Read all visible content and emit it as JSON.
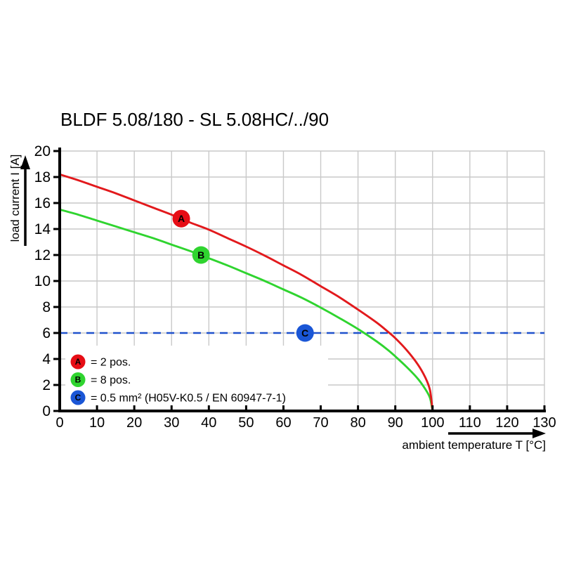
{
  "chart_data": {
    "type": "line",
    "title": "BLDF 5.08/180 - SL 5.08HC/../90",
    "xlabel": "ambient temperature T [°C]",
    "ylabel": "load current I [A]",
    "xlim": [
      0,
      130
    ],
    "ylim": [
      0,
      20
    ],
    "xticks": [
      0,
      10,
      20,
      30,
      40,
      50,
      60,
      70,
      80,
      90,
      100,
      110,
      120,
      130
    ],
    "yticks": [
      0,
      2,
      4,
      6,
      8,
      10,
      12,
      14,
      16,
      18,
      20
    ],
    "grid": true,
    "legend_position": "bottom-left-inside",
    "series": [
      {
        "id": "A",
        "name": "2 pos.",
        "style": "solid",
        "color": "#e2191c",
        "points": [
          [
            0,
            18.2
          ],
          [
            5,
            17.75
          ],
          [
            10,
            17.25
          ],
          [
            15,
            16.75
          ],
          [
            20,
            16.2
          ],
          [
            25,
            15.65
          ],
          [
            30,
            15.1
          ],
          [
            35,
            14.5
          ],
          [
            40,
            13.95
          ],
          [
            45,
            13.3
          ],
          [
            50,
            12.65
          ],
          [
            55,
            11.95
          ],
          [
            60,
            11.2
          ],
          [
            65,
            10.45
          ],
          [
            70,
            9.6
          ],
          [
            75,
            8.75
          ],
          [
            80,
            7.8
          ],
          [
            85,
            6.8
          ],
          [
            88,
            6.1
          ],
          [
            90,
            5.6
          ],
          [
            93,
            4.7
          ],
          [
            96,
            3.6
          ],
          [
            98,
            2.6
          ],
          [
            99.3,
            1.6
          ],
          [
            100,
            0
          ]
        ]
      },
      {
        "id": "B",
        "name": "8 pos.",
        "style": "solid",
        "color": "#2fd42f",
        "points": [
          [
            0,
            15.5
          ],
          [
            5,
            15.1
          ],
          [
            10,
            14.65
          ],
          [
            15,
            14.2
          ],
          [
            20,
            13.75
          ],
          [
            25,
            13.3
          ],
          [
            30,
            12.8
          ],
          [
            35,
            12.3
          ],
          [
            40,
            11.75
          ],
          [
            45,
            11.2
          ],
          [
            50,
            10.6
          ],
          [
            55,
            10.0
          ],
          [
            60,
            9.35
          ],
          [
            65,
            8.7
          ],
          [
            70,
            7.95
          ],
          [
            75,
            7.15
          ],
          [
            80,
            6.3
          ],
          [
            85,
            5.35
          ],
          [
            88,
            4.7
          ],
          [
            90,
            4.2
          ],
          [
            93,
            3.4
          ],
          [
            96,
            2.5
          ],
          [
            98,
            1.7
          ],
          [
            99.3,
            1.0
          ],
          [
            100,
            0
          ]
        ]
      },
      {
        "id": "C",
        "name": "0.5 mm² (H05V-K0.5 / EN 60947-7-1)",
        "style": "dashed",
        "color": "#1f51cc",
        "points": [
          [
            0,
            6
          ],
          [
            130,
            6
          ]
        ]
      }
    ],
    "markers": [
      {
        "label": "A",
        "x": 32.6,
        "y": 14.8,
        "color": "#e60d15",
        "text_color": "#ffffff"
      },
      {
        "label": "B",
        "x": 37.9,
        "y": 12.0,
        "color": "#2fd42f",
        "text_color": "#ffffff"
      },
      {
        "label": "C",
        "x": 65.8,
        "y": 6.0,
        "color": "#1a56d6",
        "text_color": "#ffffff"
      }
    ],
    "legend": [
      {
        "key": "A",
        "color": "#e60d15",
        "label": "= 2 pos."
      },
      {
        "key": "B",
        "color": "#2fd42f",
        "label": "= 8 pos."
      },
      {
        "key": "C",
        "color": "#1a56d6",
        "label": "= 0.5 mm² (H05V-K0.5 / EN 60947-7-1)"
      }
    ]
  },
  "style": {
    "background": "#ffffff",
    "grid_color": "#c9c9c9",
    "axis_color": "#000000",
    "dashed_line_color": "#1f51cc"
  }
}
